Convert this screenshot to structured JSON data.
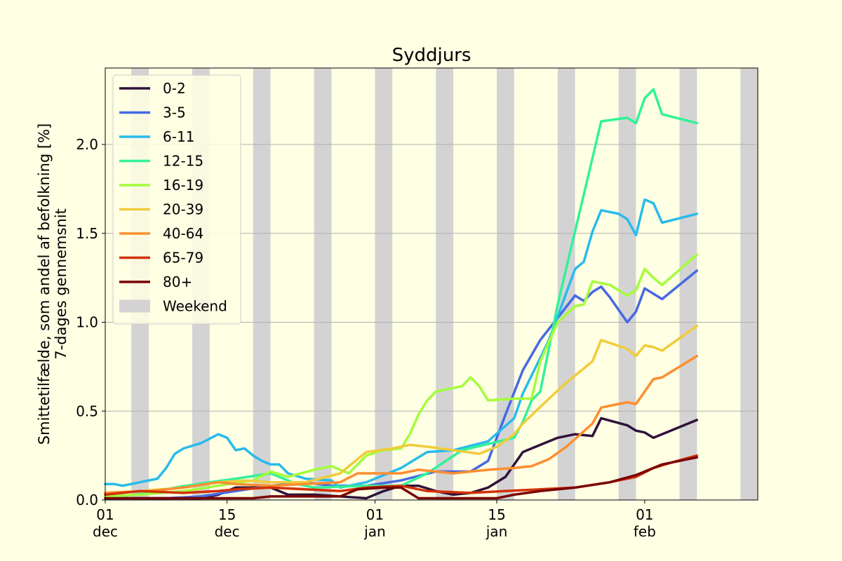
{
  "figure_background": "#ffffe4",
  "chart_data": {
    "type": "line",
    "title": "Syddjurs",
    "ylabel_lines": [
      "Smittetilfælde, som andel af befolkning [%]",
      "7-dages gennemsnit"
    ],
    "xlabel": "",
    "x_start": "2021-12-01",
    "x_end": "2022-02-14",
    "ylim": [
      0,
      2.43
    ],
    "yticks": [
      0.0,
      0.5,
      1.0,
      1.5,
      2.0
    ],
    "ytick_labels": [
      "0.0",
      "0.5",
      "1.0",
      "1.5",
      "2.0"
    ],
    "grid": "horizontal",
    "xticks": [
      {
        "date": "2021-12-01",
        "day": "01",
        "month": "dec"
      },
      {
        "date": "2021-12-15",
        "day": "15",
        "month": "dec"
      },
      {
        "date": "2022-01-01",
        "day": "01",
        "month": "jan"
      },
      {
        "date": "2022-01-15",
        "day": "15",
        "month": "jan"
      },
      {
        "date": "2022-02-01",
        "day": "01",
        "month": "feb"
      }
    ],
    "weekends": [
      [
        "2021-12-04",
        "2021-12-06"
      ],
      [
        "2021-12-11",
        "2021-12-13"
      ],
      [
        "2021-12-18",
        "2021-12-20"
      ],
      [
        "2021-12-25",
        "2021-12-27"
      ],
      [
        "2022-01-01",
        "2022-01-03"
      ],
      [
        "2022-01-08",
        "2022-01-10"
      ],
      [
        "2022-01-15",
        "2022-01-17"
      ],
      [
        "2022-01-22",
        "2022-01-24"
      ],
      [
        "2022-01-29",
        "2022-01-31"
      ],
      [
        "2022-02-05",
        "2022-02-07"
      ],
      [
        "2022-02-12",
        "2022-02-14"
      ]
    ],
    "weekend_color": "#d3d3d3",
    "legend_position": "top-left",
    "legend_weekend_label": "Weekend",
    "series": [
      {
        "name": "0-2",
        "color": "#30123b",
        "x": [
          "2021-12-01",
          "2021-12-08",
          "2021-12-12",
          "2021-12-14",
          "2021-12-16",
          "2021-12-20",
          "2021-12-22",
          "2021-12-25",
          "2021-12-28",
          "2021-12-31",
          "2022-01-02",
          "2022-01-04",
          "2022-01-06",
          "2022-01-08",
          "2022-01-10",
          "2022-01-12",
          "2022-01-14",
          "2022-01-16",
          "2022-01-18",
          "2022-01-20",
          "2022-01-22",
          "2022-01-24",
          "2022-01-26",
          "2022-01-27",
          "2022-01-30",
          "2022-01-31",
          "2022-02-01",
          "2022-02-02",
          "2022-02-04",
          "2022-02-07"
        ],
        "y": [
          0.01,
          0.01,
          0.01,
          0.03,
          0.07,
          0.07,
          0.03,
          0.03,
          0.02,
          0.01,
          0.05,
          0.08,
          0.08,
          0.05,
          0.03,
          0.04,
          0.07,
          0.13,
          0.27,
          0.31,
          0.35,
          0.37,
          0.36,
          0.46,
          0.42,
          0.39,
          0.38,
          0.35,
          0.39,
          0.45
        ]
      },
      {
        "name": "3-5",
        "color": "#4669e3",
        "x": [
          "2021-12-01",
          "2021-12-08",
          "2021-12-12",
          "2021-12-16",
          "2021-12-20",
          "2021-12-24",
          "2021-12-27",
          "2021-12-31",
          "2022-01-04",
          "2022-01-08",
          "2022-01-12",
          "2022-01-14",
          "2022-01-16",
          "2022-01-18",
          "2022-01-20",
          "2022-01-24",
          "2022-01-25",
          "2022-01-26",
          "2022-01-27",
          "2022-01-28",
          "2022-01-30",
          "2022-01-31",
          "2022-02-01",
          "2022-02-03",
          "2022-02-07"
        ],
        "y": [
          0.01,
          0.01,
          0.02,
          0.05,
          0.08,
          0.1,
          0.08,
          0.08,
          0.11,
          0.16,
          0.16,
          0.22,
          0.48,
          0.73,
          0.9,
          1.15,
          1.12,
          1.17,
          1.2,
          1.14,
          1.0,
          1.06,
          1.19,
          1.13,
          1.29
        ]
      },
      {
        "name": "6-11",
        "color": "#29bbec",
        "x": [
          "2021-12-01",
          "2021-12-02",
          "2021-12-03",
          "2021-12-04",
          "2021-12-06",
          "2021-12-07",
          "2021-12-08",
          "2021-12-09",
          "2021-12-10",
          "2021-12-12",
          "2021-12-14",
          "2021-12-15",
          "2021-12-16",
          "2021-12-17",
          "2021-12-18",
          "2021-12-19",
          "2021-12-20",
          "2021-12-21",
          "2021-12-22",
          "2021-12-24",
          "2021-12-27",
          "2021-12-28",
          "2021-12-31",
          "2022-01-04",
          "2022-01-07",
          "2022-01-10",
          "2022-01-14",
          "2022-01-17",
          "2022-01-18",
          "2022-01-21",
          "2022-01-24",
          "2022-01-25",
          "2022-01-26",
          "2022-01-27",
          "2022-01-28",
          "2022-01-29",
          "2022-01-30",
          "2022-01-31",
          "2022-02-01",
          "2022-02-02",
          "2022-02-03",
          "2022-02-07"
        ],
        "y": [
          0.09,
          0.09,
          0.08,
          0.09,
          0.11,
          0.12,
          0.18,
          0.26,
          0.29,
          0.32,
          0.37,
          0.35,
          0.28,
          0.29,
          0.25,
          0.22,
          0.2,
          0.2,
          0.15,
          0.12,
          0.11,
          0.07,
          0.1,
          0.18,
          0.27,
          0.28,
          0.33,
          0.46,
          0.6,
          0.9,
          1.3,
          1.34,
          1.51,
          1.63,
          1.62,
          1.61,
          1.58,
          1.49,
          1.69,
          1.67,
          1.56,
          1.61
        ]
      },
      {
        "name": "12-15",
        "color": "#32f298",
        "x": [
          "2021-12-01",
          "2021-12-06",
          "2021-12-09",
          "2021-12-13",
          "2021-12-16",
          "2021-12-20",
          "2021-12-23",
          "2021-12-25",
          "2021-12-31",
          "2022-01-04",
          "2022-01-07",
          "2022-01-11",
          "2022-01-17",
          "2022-01-18",
          "2022-01-19",
          "2022-01-20",
          "2022-01-22",
          "2022-01-27",
          "2022-01-30",
          "2022-01-31",
          "2022-02-01",
          "2022-02-02",
          "2022-02-03",
          "2022-02-07"
        ],
        "y": [
          0.01,
          0.04,
          0.07,
          0.1,
          0.12,
          0.15,
          0.09,
          0.07,
          0.08,
          0.08,
          0.15,
          0.28,
          0.35,
          0.44,
          0.56,
          0.61,
          1.1,
          2.13,
          2.15,
          2.12,
          2.26,
          2.31,
          2.17,
          2.12
        ]
      },
      {
        "name": "16-19",
        "color": "#a4fc3b",
        "x": [
          "2021-12-01",
          "2021-12-05",
          "2021-12-10",
          "2021-12-14",
          "2021-12-18",
          "2021-12-20",
          "2021-12-22",
          "2021-12-25",
          "2021-12-27",
          "2021-12-29",
          "2021-12-31",
          "2022-01-02",
          "2022-01-04",
          "2022-01-05",
          "2022-01-06",
          "2022-01-07",
          "2022-01-08",
          "2022-01-09",
          "2022-01-11",
          "2022-01-12",
          "2022-01-13",
          "2022-01-14",
          "2022-01-17",
          "2022-01-19",
          "2022-01-20",
          "2022-01-22",
          "2022-01-24",
          "2022-01-25",
          "2022-01-26",
          "2022-01-28",
          "2022-01-30",
          "2022-01-31",
          "2022-02-01",
          "2022-02-02",
          "2022-02-03",
          "2022-02-07"
        ],
        "y": [
          0.02,
          0.03,
          0.05,
          0.08,
          0.11,
          0.16,
          0.13,
          0.17,
          0.19,
          0.15,
          0.25,
          0.28,
          0.29,
          0.37,
          0.48,
          0.56,
          0.61,
          0.62,
          0.64,
          0.69,
          0.64,
          0.56,
          0.57,
          0.57,
          0.78,
          1.0,
          1.09,
          1.1,
          1.23,
          1.21,
          1.15,
          1.18,
          1.3,
          1.25,
          1.21,
          1.38
        ]
      },
      {
        "name": "20-39",
        "color": "#f0cc3a",
        "x": [
          "2021-12-01",
          "2021-12-05",
          "2021-12-10",
          "2021-12-14",
          "2021-12-17",
          "2021-12-20",
          "2021-12-24",
          "2021-12-28",
          "2021-12-31",
          "2022-01-03",
          "2022-01-05",
          "2022-01-07",
          "2022-01-10",
          "2022-01-13",
          "2022-01-15",
          "2022-01-17",
          "2022-01-18",
          "2022-01-21",
          "2022-01-23",
          "2022-01-25",
          "2022-01-26",
          "2022-01-27",
          "2022-01-30",
          "2022-01-31",
          "2022-02-01",
          "2022-02-02",
          "2022-02-03",
          "2022-02-07"
        ],
        "y": [
          0.04,
          0.05,
          0.07,
          0.1,
          0.11,
          0.1,
          0.1,
          0.15,
          0.27,
          0.29,
          0.31,
          0.3,
          0.28,
          0.26,
          0.3,
          0.37,
          0.43,
          0.57,
          0.66,
          0.74,
          0.78,
          0.9,
          0.85,
          0.81,
          0.87,
          0.86,
          0.84,
          0.98
        ]
      },
      {
        "name": "40-64",
        "color": "#fe8e2f",
        "x": [
          "2021-12-01",
          "2021-12-06",
          "2021-12-10",
          "2021-12-14",
          "2021-12-16",
          "2021-12-20",
          "2021-12-24",
          "2021-12-28",
          "2021-12-30",
          "2022-01-02",
          "2022-01-04",
          "2022-01-06",
          "2022-01-10",
          "2022-01-14",
          "2022-01-17",
          "2022-01-19",
          "2022-01-21",
          "2022-01-23",
          "2022-01-26",
          "2022-01-27",
          "2022-01-30",
          "2022-01-31",
          "2022-02-02",
          "2022-02-03",
          "2022-02-07"
        ],
        "y": [
          0.04,
          0.05,
          0.07,
          0.1,
          0.09,
          0.08,
          0.09,
          0.1,
          0.15,
          0.15,
          0.15,
          0.17,
          0.15,
          0.17,
          0.18,
          0.19,
          0.23,
          0.3,
          0.43,
          0.52,
          0.55,
          0.54,
          0.68,
          0.69,
          0.81
        ]
      },
      {
        "name": "65-79",
        "color": "#d23106",
        "x": [
          "2021-12-01",
          "2021-12-05",
          "2021-12-10",
          "2021-12-14",
          "2021-12-16",
          "2021-12-20",
          "2021-12-24",
          "2021-12-28",
          "2021-12-31",
          "2022-01-04",
          "2022-01-07",
          "2022-01-12",
          "2022-01-16",
          "2022-01-20",
          "2022-01-24",
          "2022-01-28",
          "2022-01-31",
          "2022-02-02",
          "2022-02-04",
          "2022-02-07"
        ],
        "y": [
          0.03,
          0.05,
          0.04,
          0.05,
          0.06,
          0.07,
          0.06,
          0.05,
          0.07,
          0.08,
          0.05,
          0.04,
          0.05,
          0.06,
          0.07,
          0.1,
          0.13,
          0.18,
          0.21,
          0.25
        ]
      },
      {
        "name": "80+",
        "color": "#7a0403",
        "x": [
          "2021-12-01",
          "2021-12-06",
          "2021-12-10",
          "2021-12-14",
          "2021-12-18",
          "2021-12-20",
          "2021-12-22",
          "2021-12-25",
          "2021-12-28",
          "2021-12-30",
          "2022-01-02",
          "2022-01-04",
          "2022-01-06",
          "2022-01-09",
          "2022-01-12",
          "2022-01-15",
          "2022-01-17",
          "2022-01-20",
          "2022-01-24",
          "2022-01-28",
          "2022-01-31",
          "2022-02-03",
          "2022-02-07"
        ],
        "y": [
          0.01,
          0.01,
          0.01,
          0.01,
          0.01,
          0.02,
          0.02,
          0.02,
          0.02,
          0.06,
          0.07,
          0.07,
          0.01,
          0.01,
          0.01,
          0.01,
          0.03,
          0.05,
          0.07,
          0.1,
          0.14,
          0.2,
          0.24
        ]
      }
    ]
  }
}
